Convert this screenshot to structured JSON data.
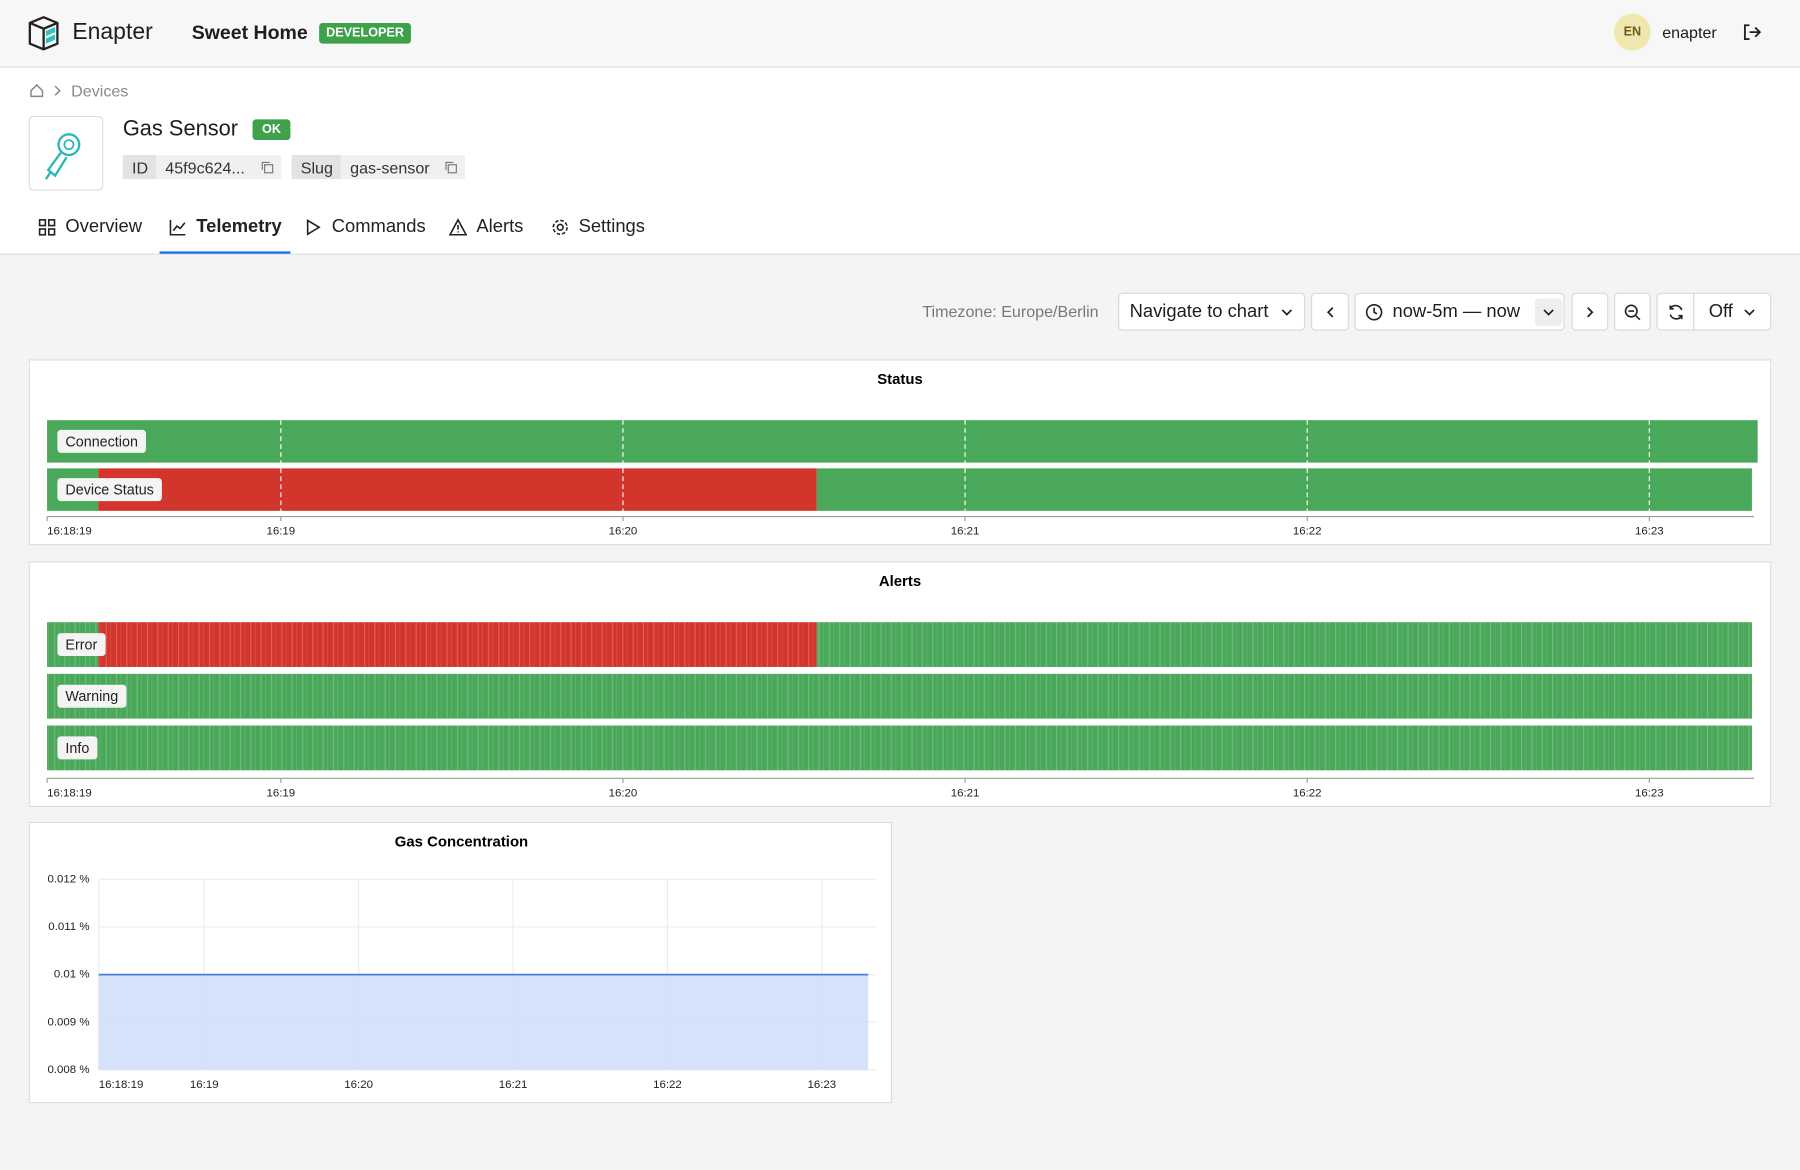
{
  "header": {
    "brand": "Enapter",
    "site": "Sweet Home",
    "badge": "DEVELOPER",
    "avatar": "EN",
    "user": "enapter"
  },
  "breadcrumb": {
    "item": "Devices"
  },
  "device": {
    "name": "Gas Sensor",
    "status": "OK",
    "id_label": "ID",
    "id": "45f9c624...",
    "slug_label": "Slug",
    "slug": "gas-sensor"
  },
  "tabs": [
    "Overview",
    "Telemetry",
    "Commands",
    "Alerts",
    "Settings"
  ],
  "active_tab": 1,
  "toolbar": {
    "timezone": "Timezone: Europe/Berlin",
    "navigate": "Navigate to chart",
    "range": "now-5m — now",
    "refresh": "Off"
  },
  "charts": [
    {
      "type": "timeline",
      "title": "Status",
      "xlim": [
        0,
        300
      ],
      "striped": false,
      "xticks": [
        {
          "value": 0,
          "label": "16:18:19"
        },
        {
          "value": 41,
          "label": "16:19"
        },
        {
          "value": 101,
          "label": "16:20"
        },
        {
          "value": 161,
          "label": "16:21"
        },
        {
          "value": 221,
          "label": "16:22"
        },
        {
          "value": 281,
          "label": "16:23"
        }
      ],
      "rows": [
        {
          "name": "Connection",
          "segments": [
            {
              "start": 0,
              "end": 300,
              "color": "#4aa85a"
            }
          ]
        },
        {
          "name": "Device Status",
          "segments": [
            {
              "start": 0,
              "end": 9,
              "color": "#4aa85a"
            },
            {
              "start": 9,
              "end": 135,
              "color": "#d2352b"
            },
            {
              "start": 135,
              "end": 299,
              "color": "#4aa85a"
            }
          ]
        }
      ]
    },
    {
      "type": "timeline",
      "title": "Alerts",
      "xlim": [
        0,
        300
      ],
      "striped": true,
      "xticks": [
        {
          "value": 0,
          "label": "16:18:19"
        },
        {
          "value": 41,
          "label": "16:19"
        },
        {
          "value": 101,
          "label": "16:20"
        },
        {
          "value": 161,
          "label": "16:21"
        },
        {
          "value": 221,
          "label": "16:22"
        },
        {
          "value": 281,
          "label": "16:23"
        }
      ],
      "rows": [
        {
          "name": "Error",
          "segments": [
            {
              "start": 0,
              "end": 9,
              "color": "#4aa85a"
            },
            {
              "start": 9,
              "end": 135,
              "color": "#d2352b"
            },
            {
              "start": 135,
              "end": 299,
              "color": "#4aa85a"
            }
          ]
        },
        {
          "name": "Warning",
          "segments": [
            {
              "start": 0,
              "end": 299,
              "color": "#4aa85a"
            }
          ]
        },
        {
          "name": "Info",
          "segments": [
            {
              "start": 0,
              "end": 299,
              "color": "#4aa85a"
            }
          ]
        }
      ]
    },
    {
      "type": "line",
      "title": "Gas Concentration",
      "color": "#4a7fe0",
      "fill": "#d0dff8",
      "grid": true,
      "xlim": [
        0,
        302
      ],
      "ylim": [
        0.008,
        0.012
      ],
      "xticks": [
        {
          "value": 0,
          "label": "16:18:19"
        },
        {
          "value": 41,
          "label": "16:19"
        },
        {
          "value": 101,
          "label": "16:20"
        },
        {
          "value": 161,
          "label": "16:21"
        },
        {
          "value": 221,
          "label": "16:22"
        },
        {
          "value": 281,
          "label": "16:23"
        }
      ],
      "yticks": [
        {
          "value": 0.008,
          "label": "0.008 %"
        },
        {
          "value": 0.009,
          "label": "0.009 %"
        },
        {
          "value": 0.01,
          "label": "0.01 %"
        },
        {
          "value": 0.011,
          "label": "0.011 %"
        },
        {
          "value": 0.012,
          "label": "0.012 %"
        }
      ],
      "x": [
        0,
        60,
        120,
        180,
        240,
        299
      ],
      "values": [
        0.01,
        0.01,
        0.01,
        0.01,
        0.01,
        0.01
      ]
    }
  ]
}
